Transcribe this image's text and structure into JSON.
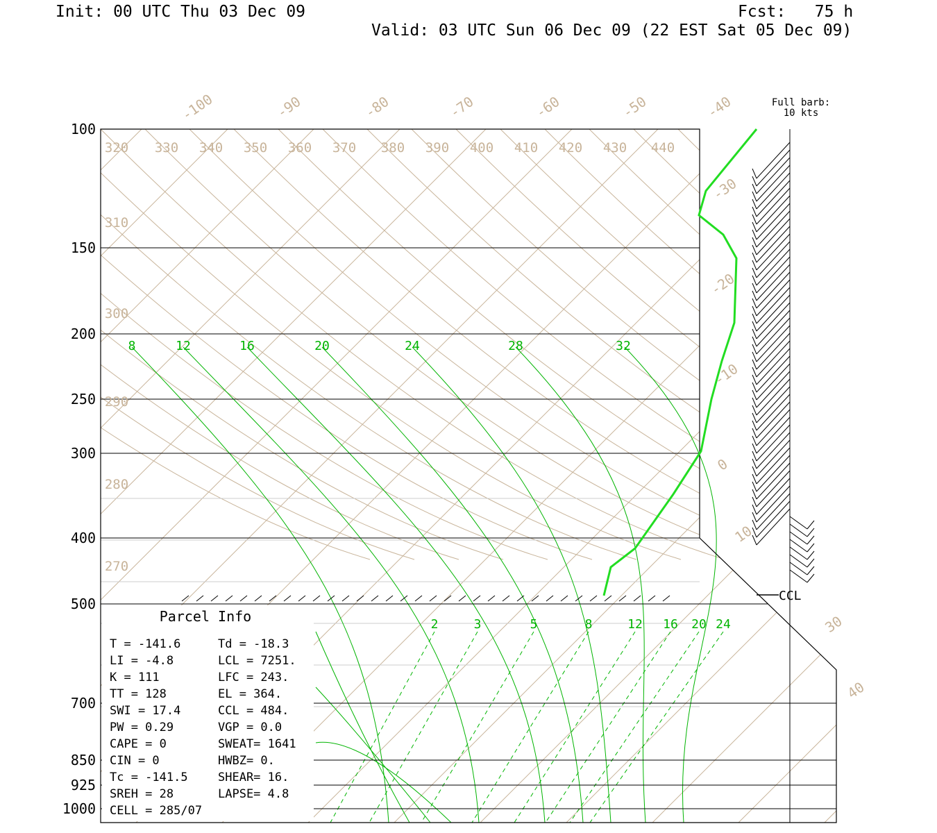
{
  "header": {
    "init": "Init: 00 UTC Thu 03 Dec 09",
    "fcst": "Fcst:   75 h",
    "valid": "Valid: 03 UTC Sun 06 Dec 09 (22 EST Sat 05 Dec 09)"
  },
  "barb_legend": {
    "line1": "Full barb:",
    "line2": "10 kts"
  },
  "ccl_label": "CCL",
  "parcel_info": {
    "title": "Parcel Info",
    "rows": [
      [
        "T  =  -141.6",
        "Td = -18.3"
      ],
      [
        "LI =    -4.8",
        "LCL = 7251."
      ],
      [
        "K  =     111",
        "LFC =  243."
      ],
      [
        "TT =     128",
        "EL  =  364."
      ],
      [
        "SWI =   17.4",
        "CCL =  484."
      ],
      [
        "PW =    0.29",
        "VGP =   0.0"
      ],
      [
        "CAPE =     0",
        "SWEAT= 1641"
      ],
      [
        "CIN =      0",
        "HWBZ=    0."
      ],
      [
        "Tc =  -141.5",
        "SHEAR=  16."
      ],
      [
        "SREH =    28",
        "LAPSE=  4.8"
      ],
      [
        "CELL = 285/07",
        ""
      ]
    ]
  },
  "colors": {
    "tan": "#c8b49a",
    "green": "#00b400",
    "bright_green": "#22dd22",
    "black": "#000000"
  },
  "chart_data": {
    "type": "line",
    "title": "",
    "pressure_levels": [
      100,
      150,
      200,
      250,
      300,
      400,
      500,
      700,
      850,
      925,
      1000
    ],
    "pressure_labels": [
      "100",
      "150",
      "200",
      "250",
      "300",
      "400",
      "500",
      "700",
      "850",
      "925",
      "1000"
    ],
    "isotherm_labels": [
      "-100",
      "-90",
      "-80",
      "-70",
      "-60",
      "-50",
      "-40",
      "-30",
      "-20",
      "-10",
      "0",
      "10",
      "30",
      "40"
    ],
    "theta_labels": [
      "320",
      "330",
      "340",
      "350",
      "360",
      "370",
      "380",
      "390",
      "400",
      "410",
      "420",
      "430",
      "440",
      "310",
      "300",
      "290",
      "280",
      "270"
    ],
    "moist_adiabat_labels": [
      "8",
      "12",
      "16",
      "20",
      "24",
      "28",
      "32"
    ],
    "mixing_ratio_labels": [
      "2",
      "3",
      "5",
      "8",
      "12",
      "16",
      "20",
      "24"
    ],
    "series": [
      {
        "type": "temperature",
        "points": [
          [
            100,
            -37
          ],
          [
            120,
            -31
          ],
          [
            140,
            -32
          ],
          [
            160,
            -24
          ],
          [
            180,
            -21
          ],
          [
            200,
            -18
          ],
          [
            250,
            -13
          ],
          [
            300,
            -9
          ],
          [
            350,
            -8
          ],
          [
            400,
            -10
          ],
          [
            430,
            -12
          ],
          [
            480,
            -13
          ]
        ]
      }
    ],
    "grid": true
  }
}
